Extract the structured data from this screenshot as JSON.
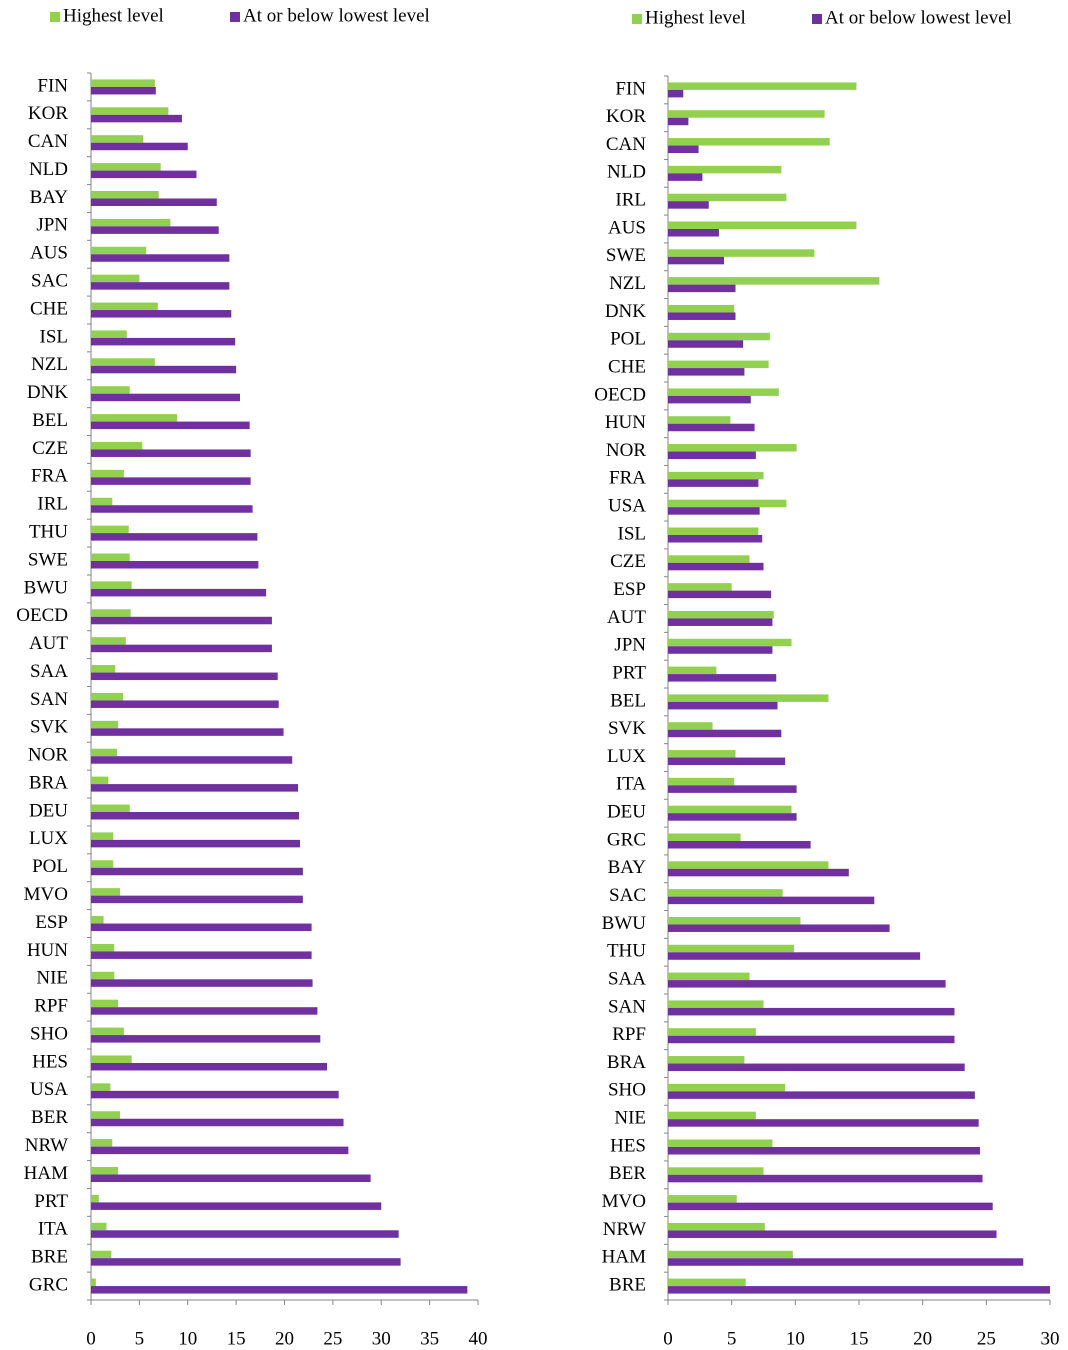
{
  "chart_data": [
    {
      "type": "bar",
      "orientation": "horizontal",
      "categories": [
        "FIN",
        "KOR",
        "CAN",
        "NLD",
        "BAY",
        "JPN",
        "AUS",
        "SAC",
        "CHE",
        "ISL",
        "NZL",
        "DNK",
        "BEL",
        "CZE",
        "FRA",
        "IRL",
        "THU",
        "SWE",
        "BWU",
        "OECD",
        "AUT",
        "SAA",
        "SAN",
        "SVK",
        "NOR",
        "BRA",
        "DEU",
        "LUX",
        "POL",
        "MVO",
        "ESP",
        "HUN",
        "NIE",
        "RPF",
        "SHO",
        "HES",
        "USA",
        "BER",
        "NRW",
        "HAM",
        "PRT",
        "ITA",
        "BRE",
        "GRC"
      ],
      "series": [
        {
          "name": "Highest level",
          "color": "#92d050",
          "values": [
            6.6,
            8.0,
            5.4,
            7.2,
            7.0,
            8.2,
            5.7,
            5.0,
            6.9,
            3.7,
            6.6,
            4.0,
            8.9,
            5.3,
            3.4,
            2.2,
            3.9,
            4.0,
            4.2,
            4.1,
            3.6,
            2.5,
            3.3,
            2.8,
            2.7,
            1.8,
            4.0,
            2.3,
            2.3,
            3.0,
            1.3,
            2.4,
            2.4,
            2.8,
            3.4,
            4.2,
            2.0,
            3.0,
            2.2,
            2.8,
            0.8,
            1.6,
            2.1,
            0.5
          ]
        },
        {
          "name": "At or below lowest level",
          "color": "#7030a0",
          "values": [
            6.7,
            9.4,
            10.0,
            10.9,
            13.0,
            13.2,
            14.3,
            14.3,
            14.5,
            14.9,
            15.0,
            15.4,
            16.4,
            16.5,
            16.5,
            16.7,
            17.2,
            17.3,
            18.1,
            18.7,
            18.7,
            19.3,
            19.4,
            19.9,
            20.8,
            21.4,
            21.5,
            21.6,
            21.9,
            21.9,
            22.8,
            22.8,
            22.9,
            23.4,
            23.7,
            24.4,
            25.6,
            26.1,
            26.6,
            28.9,
            30.0,
            31.8,
            32.0,
            38.9
          ]
        }
      ],
      "xlim": [
        0,
        40
      ],
      "xticks": [
        0,
        5,
        10,
        15,
        20,
        25,
        30,
        35,
        40
      ],
      "legend": "top"
    },
    {
      "type": "bar",
      "orientation": "horizontal",
      "categories": [
        "FIN",
        "KOR",
        "CAN",
        "NLD",
        "IRL",
        "AUS",
        "SWE",
        "NZL",
        "DNK",
        "POL",
        "CHE",
        "OECD",
        "HUN",
        "NOR",
        "FRA",
        "USA",
        "ISL",
        "CZE",
        "ESP",
        "AUT",
        "JPN",
        "PRT",
        "BEL",
        "SVK",
        "LUX",
        "ITA",
        "DEU",
        "GRC",
        "BAY",
        "SAC",
        "BWU",
        "THU",
        "SAA",
        "SAN",
        "RPF",
        "BRA",
        "SHO",
        "NIE",
        "HES",
        "BER",
        "MVO",
        "NRW",
        "HAM",
        "BRE"
      ],
      "series": [
        {
          "name": "Highest level",
          "color": "#92d050",
          "values": [
            14.8,
            12.3,
            12.7,
            8.9,
            9.3,
            14.8,
            11.5,
            16.6,
            5.2,
            8.0,
            7.9,
            8.7,
            4.9,
            10.1,
            7.5,
            9.3,
            7.1,
            6.4,
            5.0,
            8.3,
            9.7,
            3.8,
            12.6,
            3.5,
            5.3,
            5.2,
            9.7,
            5.7,
            12.6,
            9.0,
            10.4,
            9.9,
            6.4,
            7.5,
            6.9,
            6.0,
            9.2,
            6.9,
            8.2,
            7.5,
            5.4,
            7.6,
            9.8,
            6.1
          ]
        },
        {
          "name": "At or below lowest level",
          "color": "#7030a0",
          "values": [
            1.2,
            1.6,
            2.4,
            2.7,
            3.2,
            4.0,
            4.4,
            5.3,
            5.3,
            5.9,
            6.0,
            6.5,
            6.8,
            6.9,
            7.1,
            7.2,
            7.4,
            7.5,
            8.1,
            8.2,
            8.2,
            8.5,
            8.6,
            8.9,
            9.2,
            10.1,
            10.1,
            11.2,
            14.2,
            16.2,
            17.4,
            19.8,
            21.8,
            22.5,
            22.5,
            23.3,
            24.1,
            24.4,
            24.5,
            24.7,
            25.5,
            25.8,
            27.9,
            30.0
          ]
        }
      ],
      "xlim": [
        0,
        30
      ],
      "xticks": [
        0,
        5,
        10,
        15,
        20,
        25,
        30
      ],
      "legend": "top"
    }
  ]
}
